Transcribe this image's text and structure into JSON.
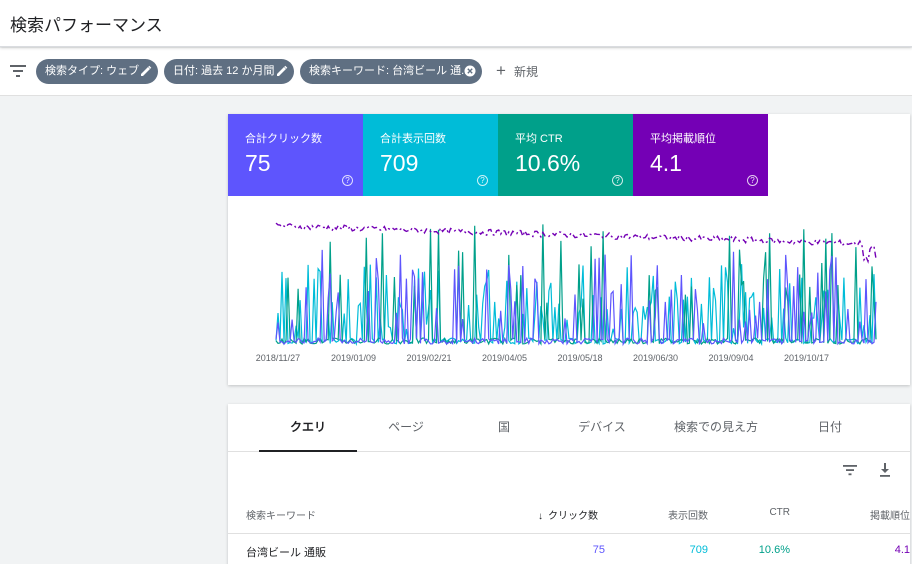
{
  "header": {
    "title": "検索パフォーマンス"
  },
  "filters": {
    "chips": [
      {
        "label": "検索タイプ: ウェブ",
        "icon": "edit-icon"
      },
      {
        "label": "日付: 過去 12 か月間",
        "icon": "edit-icon"
      },
      {
        "label": "検索キーワード: 台湾ビール 通...",
        "icon": "clear-icon"
      }
    ],
    "new_label": "新規"
  },
  "metrics": [
    {
      "label": "合計クリック数",
      "value": "75",
      "color": "#5e55fd"
    },
    {
      "label": "合計表示回数",
      "value": "709",
      "color": "#00bcd8"
    },
    {
      "label": "平均 CTR",
      "value": "10.6%",
      "color": "#00a08a"
    },
    {
      "label": "平均掲載順位",
      "value": "4.1",
      "color": "#7400b5"
    }
  ],
  "chart_data": {
    "type": "line",
    "x_tick_labels": [
      "2018/11/27",
      "2019/01/09",
      "2019/02/21",
      "2019/04/05",
      "2019/05/18",
      "2019/06/30",
      "2019/09/04",
      "2019/10/17"
    ],
    "series_colors": {
      "clicks": "#5e55fd",
      "impressions": "#00bcd8",
      "ctr": "#00a08a",
      "position": "#7400b5"
    },
    "grid": false,
    "legend": "none"
  },
  "tabs": [
    "クエリ",
    "ページ",
    "国",
    "デバイス",
    "検索での見え方",
    "日付"
  ],
  "active_tab": 0,
  "table": {
    "columns": [
      "検索キーワード",
      "クリック数",
      "表示回数",
      "CTR",
      "掲載順位"
    ],
    "rows": [
      {
        "query": "台湾ビール 通販",
        "clicks": "75",
        "impressions": "709",
        "ctr": "10.6%",
        "position": "4.1"
      }
    ]
  }
}
